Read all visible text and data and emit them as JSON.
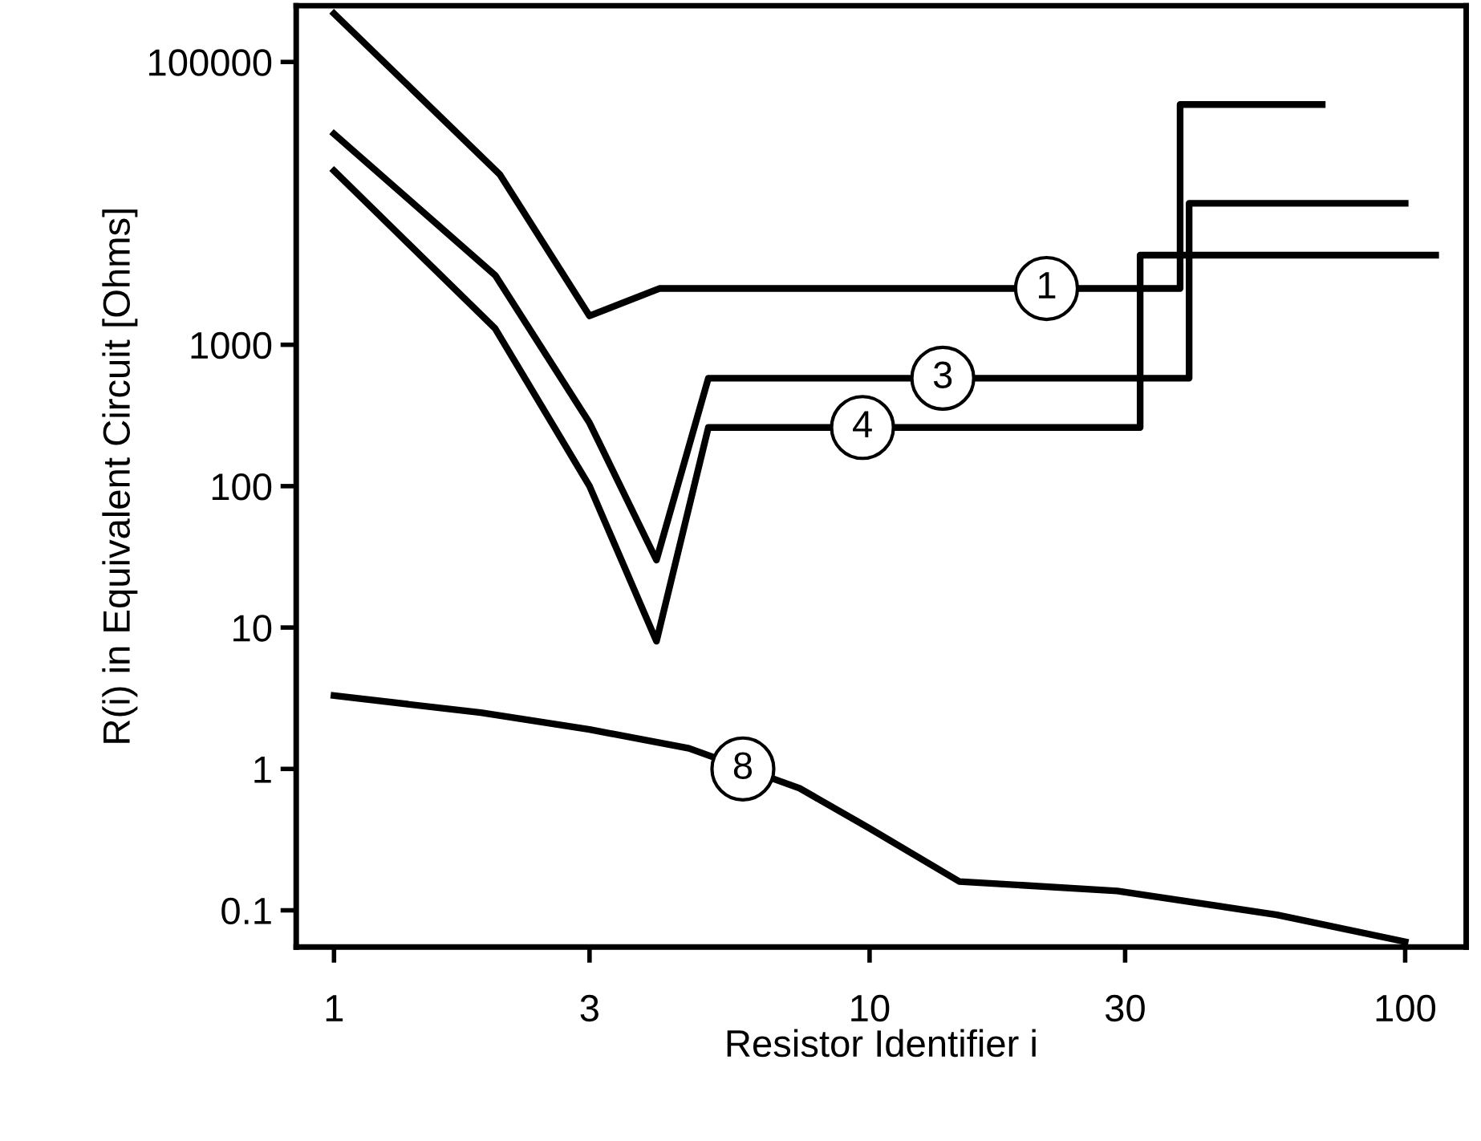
{
  "chart_data": {
    "type": "line",
    "xlabel": "Resistor Identifier i",
    "ylabel": "R(i) in Equivalent Circuit [Ohms]",
    "log": "xy",
    "grid": false,
    "marker": "none",
    "line_style": "solid",
    "xlim": [
      0.85,
      130
    ],
    "ylim": [
      0.055,
      250000
    ],
    "xticks": [
      1,
      3,
      10,
      30,
      100
    ],
    "yticks": [
      0.1,
      1,
      10,
      100,
      1000,
      100000
    ],
    "series": [
      {
        "color": "#000000",
        "x": [
          1,
          2.04,
          3,
          4.05,
          38,
          38,
          70
        ],
        "values": [
          220000,
          16000,
          1600,
          2500,
          2500,
          50000,
          50000
        ]
      },
      {
        "color": "#000000",
        "x": [
          1,
          2,
          3,
          4,
          5,
          39.5,
          39.5,
          100
        ],
        "values": [
          31000,
          3100,
          280,
          30,
          580,
          580,
          10000,
          10000
        ]
      },
      {
        "color": "#000000",
        "x": [
          1,
          2,
          3,
          4,
          5,
          32,
          32,
          114
        ],
        "values": [
          17000,
          1300,
          100,
          8,
          260,
          260,
          4300,
          4300
        ]
      },
      {
        "color": "#000000",
        "x": [
          1,
          1.88,
          3,
          4.6,
          7.4,
          10,
          14.7,
          29,
          57.6,
          100
        ],
        "values": [
          3.3,
          2.5,
          1.9,
          1.4,
          0.73,
          0.38,
          0.16,
          0.137,
          0.093,
          0.06
        ]
      }
    ],
    "annotations": [
      {
        "text": "1",
        "x": 21.4,
        "y": 2500
      },
      {
        "text": "3",
        "x": 13.7,
        "y": 580
      },
      {
        "text": "4",
        "x": 9.7,
        "y": 260
      },
      {
        "text": "8",
        "x": 5.8,
        "y": 1
      }
    ]
  }
}
